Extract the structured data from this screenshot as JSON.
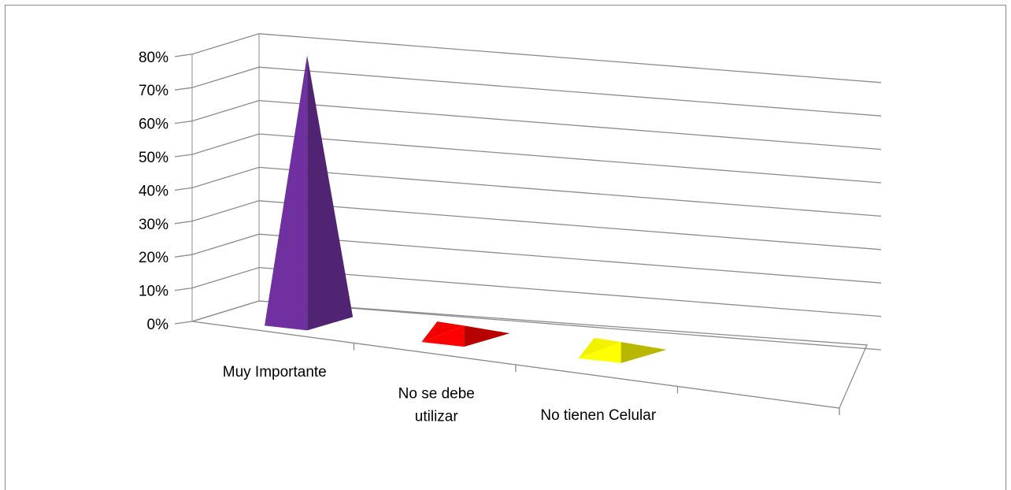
{
  "chart_data": {
    "type": "bar",
    "style": "3d-pyramid",
    "categories": [
      "Muy Importante",
      "No se debe utilizar",
      "No tienen Celular"
    ],
    "category_label_lines": [
      [
        "Muy Importante"
      ],
      [
        "No se debe",
        "utilizar"
      ],
      [
        "No tienen Celular"
      ]
    ],
    "values": [
      0.79,
      0.03,
      0.03
    ],
    "colors": [
      "#7030a0",
      "#ff0000",
      "#ffff00"
    ],
    "ylim": [
      0,
      0.8
    ],
    "yticks": [
      0,
      0.1,
      0.2,
      0.3,
      0.4,
      0.5,
      0.6,
      0.7,
      0.8
    ],
    "ytick_labels": [
      "0%",
      "10%",
      "20%",
      "30%",
      "40%",
      "50%",
      "60%",
      "70%",
      "80%"
    ],
    "grid": true,
    "legend": "none"
  }
}
